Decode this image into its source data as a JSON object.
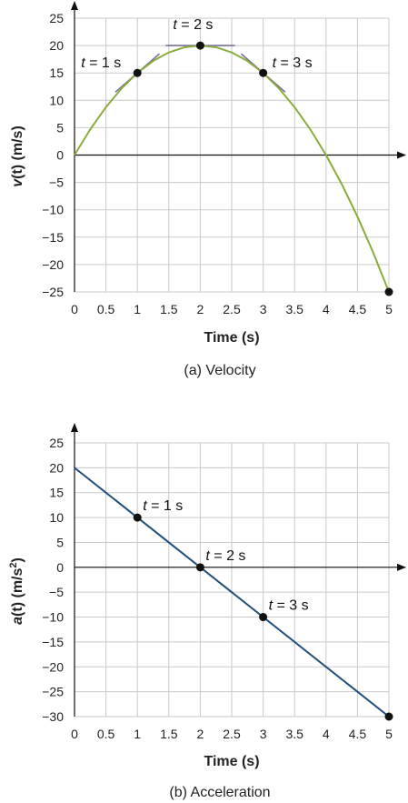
{
  "chart_data": [
    {
      "type": "line",
      "caption": "(a) Velocity",
      "xlabel": "Time (s)",
      "ylabel_var": "v",
      "ylabel_rest": "(t) (m/s)",
      "ylabel_sup": "",
      "xlim": [
        0,
        5
      ],
      "ylim": [
        -25,
        25
      ],
      "xticks": [
        "0",
        "0.5",
        "1",
        "1.5",
        "2",
        "2.5",
        "3",
        "3.5",
        "4",
        "4.5",
        "5"
      ],
      "yticks": [
        "25",
        "20",
        "15",
        "10",
        "5",
        "0",
        "−5",
        "−10",
        "−15",
        "−20",
        "−25"
      ],
      "grid": true,
      "line_color": "#8aac3c",
      "tangent_color": "#7a6e9e",
      "series": [
        {
          "x": [
            0,
            0.25,
            0.5,
            0.75,
            1,
            1.25,
            1.5,
            1.75,
            2,
            2.25,
            2.5,
            2.75,
            3,
            3.25,
            3.5,
            3.75,
            4,
            4.25,
            4.5,
            4.75,
            5
          ],
          "values": [
            0,
            4.69,
            8.75,
            12.19,
            15,
            17.19,
            18.75,
            19.69,
            20,
            19.69,
            18.75,
            17.19,
            15,
            12.19,
            8.75,
            4.69,
            0,
            -5.31,
            -11.25,
            -17.81,
            -25
          ]
        }
      ],
      "points": [
        {
          "x": 1,
          "y": 15,
          "label": "t = 1 s"
        },
        {
          "x": 2,
          "y": 20,
          "label": "t = 2 s"
        },
        {
          "x": 3,
          "y": 15,
          "label": "t = 3 s"
        },
        {
          "x": 5,
          "y": -25,
          "label": ""
        }
      ],
      "tangents": [
        {
          "x": 1,
          "y": 15,
          "slope": 10,
          "half": 0.35
        },
        {
          "x": 2,
          "y": 20,
          "slope": 0,
          "half": 0.55
        },
        {
          "x": 3,
          "y": 15,
          "slope": -10,
          "half": 0.35
        }
      ]
    },
    {
      "type": "line",
      "caption": "(b) Acceleration",
      "xlabel": "Time (s)",
      "ylabel_var": "a",
      "ylabel_rest": "(t) (m/s",
      "ylabel_sup": "2",
      "ylabel_close": ")",
      "xlim": [
        0,
        5
      ],
      "ylim": [
        -30,
        25
      ],
      "xticks": [
        "0",
        "0.5",
        "1",
        "1.5",
        "2",
        "2.5",
        "3",
        "3.5",
        "4",
        "4.5",
        "5"
      ],
      "yticks": [
        "25",
        "20",
        "15",
        "10",
        "5",
        "0",
        "−5",
        "−10",
        "−15",
        "−20",
        "−25",
        "−30"
      ],
      "grid": true,
      "line_color": "#1f4e79",
      "series": [
        {
          "x": [
            0,
            5
          ],
          "values": [
            20,
            -30
          ]
        }
      ],
      "points": [
        {
          "x": 1,
          "y": 10,
          "label": "t = 1 s"
        },
        {
          "x": 2,
          "y": 0,
          "label": "t = 2 s"
        },
        {
          "x": 3,
          "y": -10,
          "label": "t = 3 s"
        },
        {
          "x": 5,
          "y": -30,
          "label": ""
        }
      ]
    }
  ]
}
